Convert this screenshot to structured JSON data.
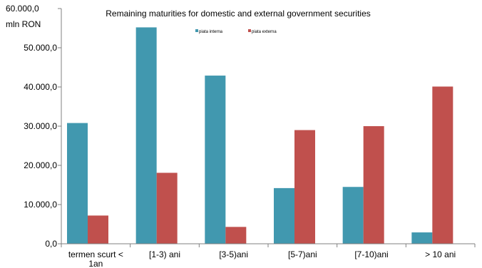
{
  "chart_data": {
    "type": "bar",
    "title": "Remaining maturities for domestic and external government securities",
    "unit_label": "mln RON",
    "xlabel": "",
    "ylabel": "",
    "ylim": [
      0,
      60000
    ],
    "y_ticks": [
      "0,0",
      "10.000,0",
      "20.000,0",
      "30.000,0",
      "40.000,0",
      "50.000,0",
      "60.000,0"
    ],
    "grid": false,
    "legend_position": "top-center",
    "categories": [
      "termen scurt < 1an",
      "[1-3) ani",
      "[3-5)ani",
      "[5-7)ani",
      "[7-10)ani",
      "> 10 ani"
    ],
    "series": [
      {
        "name": "piata interna",
        "color": "#4198AF",
        "values": [
          30800,
          55200,
          42900,
          14200,
          14500,
          2900
        ]
      },
      {
        "name": "piata externa",
        "color": "#C0504D",
        "values": [
          7200,
          18100,
          4300,
          29000,
          30000,
          40100
        ]
      }
    ]
  }
}
